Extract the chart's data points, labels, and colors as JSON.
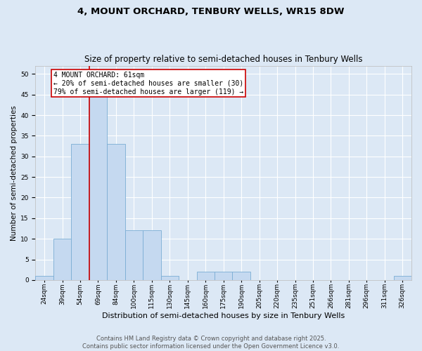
{
  "title": "4, MOUNT ORCHARD, TENBURY WELLS, WR15 8DW",
  "subtitle": "Size of property relative to semi-detached houses in Tenbury Wells",
  "xlabel": "Distribution of semi-detached houses by size in Tenbury Wells",
  "ylabel": "Number of semi-detached properties",
  "categories": [
    "24sqm",
    "39sqm",
    "54sqm",
    "69sqm",
    "84sqm",
    "100sqm",
    "115sqm",
    "130sqm",
    "145sqm",
    "160sqm",
    "175sqm",
    "190sqm",
    "205sqm",
    "220sqm",
    "235sqm",
    "251sqm",
    "266sqm",
    "281sqm",
    "296sqm",
    "311sqm",
    "326sqm"
  ],
  "values": [
    1,
    10,
    33,
    45,
    33,
    12,
    12,
    1,
    0,
    2,
    2,
    2,
    0,
    0,
    0,
    0,
    0,
    0,
    0,
    0,
    1
  ],
  "bar_color": "#c5d9f0",
  "bar_edge_color": "#7badd4",
  "background_color": "#dce8f5",
  "grid_color": "#ffffff",
  "vline_color": "#cc0000",
  "vline_x_index": 2.5,
  "annotation_text": "4 MOUNT ORCHARD: 61sqm\n← 20% of semi-detached houses are smaller (30)\n79% of semi-detached houses are larger (119) →",
  "annotation_box_facecolor": "#ffffff",
  "annotation_box_edgecolor": "#cc0000",
  "footer_text": "Contains HM Land Registry data © Crown copyright and database right 2025.\nContains public sector information licensed under the Open Government Licence v3.0.",
  "ylim": [
    0,
    52
  ],
  "yticks": [
    0,
    5,
    10,
    15,
    20,
    25,
    30,
    35,
    40,
    45,
    50
  ],
  "title_fontsize": 9.5,
  "subtitle_fontsize": 8.5,
  "xlabel_fontsize": 8,
  "ylabel_fontsize": 7.5,
  "tick_fontsize": 6.5,
  "annot_fontsize": 7,
  "footer_fontsize": 6
}
